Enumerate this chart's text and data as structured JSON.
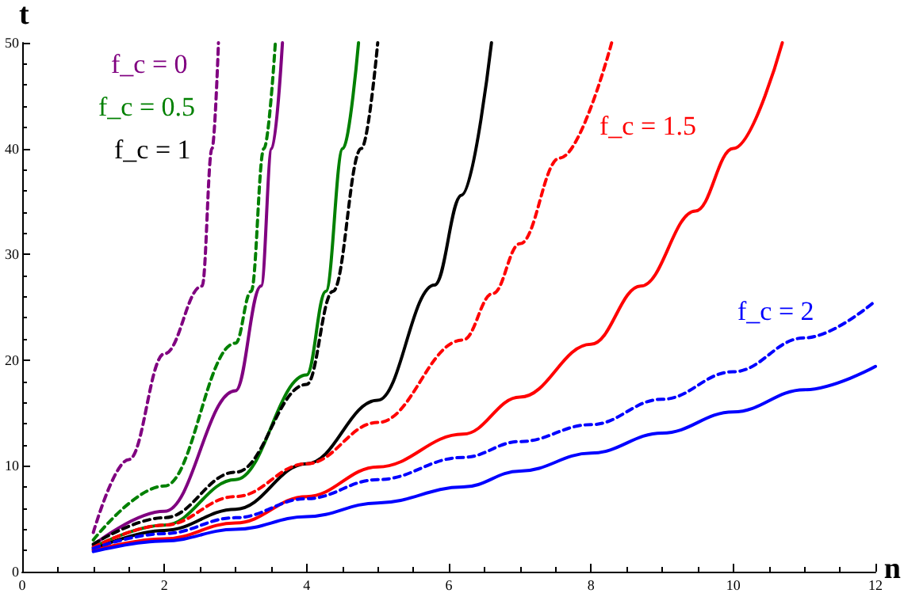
{
  "chart_data": {
    "type": "line",
    "xlabel": "n",
    "ylabel": "t",
    "xlim": [
      0,
      12
    ],
    "ylim": [
      0,
      50
    ],
    "xticks": [
      0,
      2,
      4,
      6,
      8,
      10,
      12
    ],
    "yticks": [
      0,
      10,
      20,
      30,
      40,
      50
    ],
    "grid": false,
    "legend": false,
    "marker": "none",
    "series": [
      {
        "name": "f_c = 0",
        "color": "#800080",
        "line_style": "solid",
        "x": [
          1,
          2,
          3,
          3.36,
          3.51,
          3.66
        ],
        "values": [
          2.5,
          5.7,
          17.1,
          27,
          40,
          50
        ]
      },
      {
        "color": "#800080",
        "line_style": "dashed",
        "x": [
          1,
          1.5,
          2,
          2.53,
          2.67,
          2.76
        ],
        "values": [
          3.7,
          10.6,
          20.6,
          27,
          40,
          50
        ]
      },
      {
        "name": "f_c = 0.5",
        "color": "#008000",
        "line_style": "solid",
        "x": [
          1,
          2,
          3,
          4,
          4.27,
          4.51,
          4.73
        ],
        "values": [
          2.3,
          4.4,
          8.7,
          18.6,
          26.5,
          40,
          50
        ]
      },
      {
        "color": "#008000",
        "line_style": "dashed",
        "x": [
          1,
          2,
          3,
          3.22,
          3.4,
          3.56
        ],
        "values": [
          3.0,
          8.1,
          21.6,
          26.5,
          40,
          50
        ]
      },
      {
        "name": "f_c = 1",
        "color": "#000000",
        "line_style": "solid",
        "x": [
          1,
          2,
          3,
          4,
          5,
          5.8,
          6.18,
          6.6
        ],
        "values": [
          2.1,
          3.9,
          5.9,
          10.2,
          16.2,
          27.1,
          35.6,
          50
        ]
      },
      {
        "color": "#000000",
        "line_style": "dashed",
        "x": [
          1,
          2,
          3,
          4,
          4.37,
          4.77,
          5.0
        ],
        "values": [
          2.6,
          5.1,
          9.4,
          17.7,
          26.5,
          40,
          50
        ]
      },
      {
        "name": "f_c = 1.5",
        "color": "#ff0000",
        "line_style": "solid",
        "x": [
          1,
          2,
          3,
          4,
          5,
          6.2,
          7,
          8,
          8.7,
          9.47,
          10,
          10.69
        ],
        "values": [
          2.0,
          3.1,
          4.6,
          7.1,
          9.9,
          13.0,
          16.5,
          21.5,
          27,
          34.1,
          40,
          50
        ]
      },
      {
        "color": "#ff0000",
        "line_style": "dashed",
        "x": [
          1,
          2,
          3,
          4,
          5,
          6.2,
          6.62,
          7,
          7.56,
          8.29
        ],
        "values": [
          2.3,
          4.4,
          7.1,
          10.2,
          14.1,
          21.9,
          26.3,
          31,
          39.1,
          50
        ]
      },
      {
        "name": "f_c = 2",
        "color": "#0000ff",
        "line_style": "solid",
        "x": [
          1,
          2,
          3,
          4,
          5,
          6.2,
          7,
          8,
          9,
          10,
          11,
          12
        ],
        "values": [
          1.9,
          2.9,
          4.0,
          5.2,
          6.5,
          8.0,
          9.5,
          11.2,
          13.1,
          15.1,
          17.2,
          19.4
        ]
      },
      {
        "color": "#0000ff",
        "line_style": "dashed",
        "x": [
          1,
          2,
          3,
          4,
          5,
          6.2,
          7,
          8,
          9,
          10,
          11,
          12
        ],
        "values": [
          2.2,
          3.6,
          5.1,
          6.9,
          8.7,
          10.8,
          12.3,
          13.9,
          16.3,
          18.9,
          22.1,
          25.6
        ]
      }
    ]
  }
}
